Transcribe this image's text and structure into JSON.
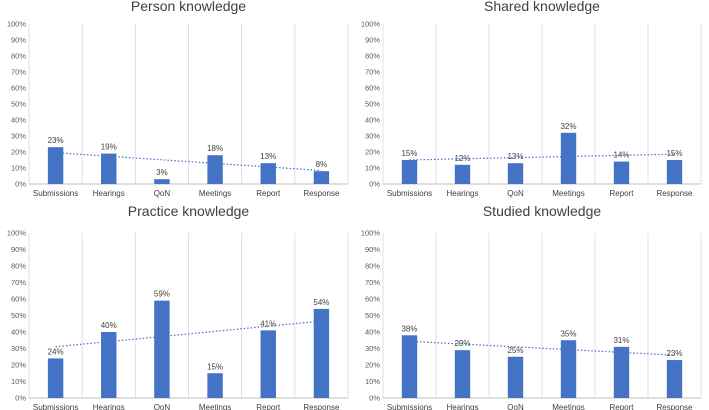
{
  "colors": {
    "bar": "#4472C4",
    "trend": "#4472C4",
    "grid": "#D9D9D9",
    "axis": "#BFBFBF",
    "text": "#404040"
  },
  "chart_data": [
    {
      "type": "bar",
      "title": "Person knowledge",
      "categories": [
        "Submissions",
        "Hearings",
        "QoN",
        "Meetings",
        "Report",
        "Response"
      ],
      "values": [
        23,
        19,
        3,
        18,
        13,
        8
      ],
      "data_labels": [
        "23%",
        "19%",
        "3%",
        "18%",
        "13%",
        "8%"
      ],
      "ylim": [
        0,
        100
      ],
      "yticks": [
        "0%",
        "10%",
        "20%",
        "30%",
        "40%",
        "50%",
        "60%",
        "70%",
        "80%",
        "90%",
        "100%"
      ],
      "grid": "vertical",
      "trendline": "linear"
    },
    {
      "type": "bar",
      "title": "Shared knowledge",
      "categories": [
        "Submissions",
        "Hearings",
        "QoN",
        "Meetings",
        "Report",
        "Response"
      ],
      "values": [
        15,
        12,
        13,
        32,
        14,
        15
      ],
      "data_labels": [
        "15%",
        "12%",
        "13%",
        "32%",
        "14%",
        "15%"
      ],
      "ylim": [
        0,
        100
      ],
      "yticks": [
        "0%",
        "10%",
        "20%",
        "30%",
        "40%",
        "50%",
        "60%",
        "70%",
        "80%",
        "90%",
        "100%"
      ],
      "grid": "vertical",
      "trendline": "linear"
    },
    {
      "type": "bar",
      "title": "Practice knowledge",
      "categories": [
        "Submissions",
        "Hearings",
        "QoN",
        "Meetings",
        "Report",
        "Response"
      ],
      "values": [
        24,
        40,
        59,
        15,
        41,
        54
      ],
      "data_labels": [
        "24%",
        "40%",
        "59%",
        "15%",
        "41%",
        "54%"
      ],
      "ylim": [
        0,
        100
      ],
      "yticks": [
        "0%",
        "10%",
        "20%",
        "30%",
        "40%",
        "50%",
        "60%",
        "70%",
        "80%",
        "90%",
        "100%"
      ],
      "grid": "vertical",
      "trendline": "linear"
    },
    {
      "type": "bar",
      "title": "Studied knowledge",
      "categories": [
        "Submissions",
        "Hearings",
        "QoN",
        "Meetings",
        "Report",
        "Response"
      ],
      "values": [
        38,
        29,
        25,
        35,
        31,
        23
      ],
      "data_labels": [
        "38%",
        "29%",
        "25%",
        "35%",
        "31%",
        "23%"
      ],
      "ylim": [
        0,
        100
      ],
      "yticks": [
        "0%",
        "10%",
        "20%",
        "30%",
        "40%",
        "50%",
        "60%",
        "70%",
        "80%",
        "90%",
        "100%"
      ],
      "grid": "vertical",
      "trendline": "linear"
    }
  ]
}
